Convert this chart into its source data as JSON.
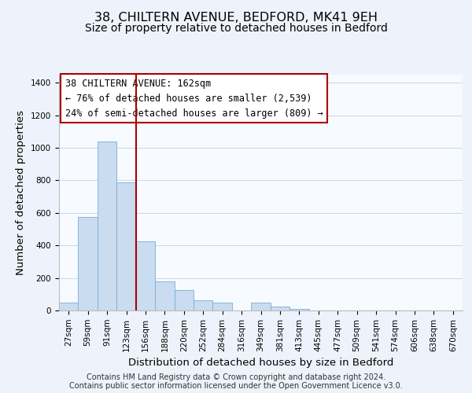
{
  "title": "38, CHILTERN AVENUE, BEDFORD, MK41 9EH",
  "subtitle": "Size of property relative to detached houses in Bedford",
  "xlabel": "Distribution of detached houses by size in Bedford",
  "ylabel": "Number of detached properties",
  "bin_labels": [
    "27sqm",
    "59sqm",
    "91sqm",
    "123sqm",
    "156sqm",
    "188sqm",
    "220sqm",
    "252sqm",
    "284sqm",
    "316sqm",
    "349sqm",
    "381sqm",
    "413sqm",
    "445sqm",
    "477sqm",
    "509sqm",
    "541sqm",
    "574sqm",
    "606sqm",
    "638sqm",
    "670sqm"
  ],
  "bar_heights": [
    50,
    575,
    1040,
    790,
    425,
    180,
    125,
    65,
    50,
    0,
    48,
    22,
    10,
    0,
    0,
    0,
    0,
    0,
    0,
    0,
    0
  ],
  "bar_color": "#c9dcf0",
  "bar_edge_color": "#7aaed6",
  "vline_index": 4,
  "vline_color": "#aa0000",
  "annotation_title": "38 CHILTERN AVENUE: 162sqm",
  "annotation_line1": "← 76% of detached houses are smaller (2,539)",
  "annotation_line2": "24% of semi-detached houses are larger (809) →",
  "annotation_box_facecolor": "#ffffff",
  "annotation_box_edgecolor": "#aa0000",
  "ylim": [
    0,
    1450
  ],
  "yticks": [
    0,
    200,
    400,
    600,
    800,
    1000,
    1200,
    1400
  ],
  "footer_line1": "Contains HM Land Registry data © Crown copyright and database right 2024.",
  "footer_line2": "Contains public sector information licensed under the Open Government Licence v3.0.",
  "background_color": "#eef3fb",
  "plot_background_color": "#f7faff",
  "grid_color": "#c8d8ec",
  "title_fontsize": 11.5,
  "subtitle_fontsize": 10,
  "axis_label_fontsize": 9.5,
  "tick_fontsize": 7.5,
  "annotation_fontsize": 8.5,
  "footer_fontsize": 7
}
